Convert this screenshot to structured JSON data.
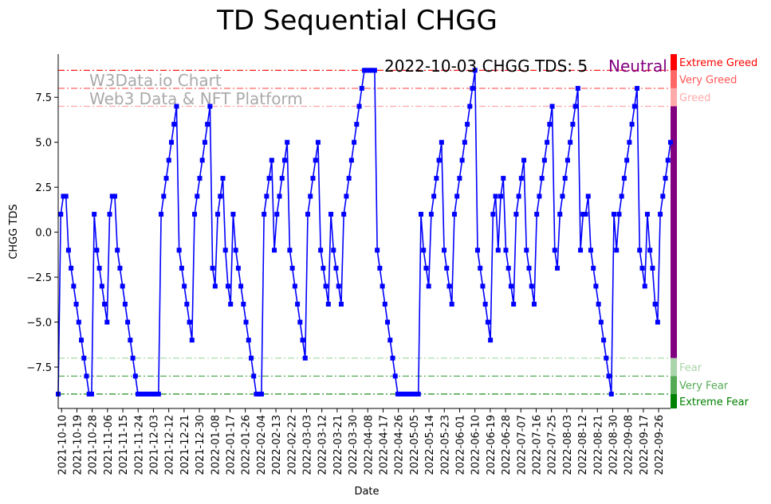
{
  "chart_data": {
    "type": "line",
    "title": "TD Sequential CHGG",
    "xlabel": "Date",
    "ylabel": "CHGG TDS",
    "ylim": [
      -9.8,
      9.9
    ],
    "yticks": [
      -7.5,
      -5.0,
      -2.5,
      0.0,
      2.5,
      5.0,
      7.5
    ],
    "ytick_labels": [
      "−7.5",
      "−5.0",
      "−2.5",
      "0.0",
      "2.5",
      "5.0",
      "7.5"
    ],
    "start_date": "2021-10-08",
    "end_date": "2022-10-03",
    "xtick_labels": [
      "2021-10-10",
      "2021-10-19",
      "2021-10-28",
      "2021-11-06",
      "2021-11-15",
      "2021-11-24",
      "2021-12-03",
      "2021-12-12",
      "2021-12-21",
      "2021-12-30",
      "2022-01-08",
      "2022-01-17",
      "2022-01-26",
      "2022-02-04",
      "2022-02-13",
      "2022-02-22",
      "2022-03-03",
      "2022-03-12",
      "2022-03-21",
      "2022-03-30",
      "2022-04-08",
      "2022-04-17",
      "2022-04-26",
      "2022-05-05",
      "2022-05-14",
      "2022-05-23",
      "2022-06-01",
      "2022-06-10",
      "2022-06-19",
      "2022-06-28",
      "2022-07-07",
      "2022-07-16",
      "2022-07-25",
      "2022-08-03",
      "2022-08-12",
      "2022-08-21",
      "2022-08-30",
      "2022-09-08",
      "2022-09-17",
      "2022-09-26"
    ],
    "series": [
      {
        "name": "CHGG TDS",
        "color": "#0000ff",
        "values": [
          -9,
          1,
          2,
          2,
          -1,
          -2,
          -3,
          -4,
          -5,
          -6,
          -7,
          -8,
          -9,
          -9,
          1,
          -1,
          -2,
          -3,
          -4,
          -5,
          1,
          2,
          2,
          -1,
          -2,
          -3,
          -4,
          -5,
          -6,
          -7,
          -8,
          -9,
          -9,
          -9,
          -9,
          -9,
          -9,
          -9,
          -9,
          -9,
          1,
          2,
          3,
          4,
          5,
          6,
          7,
          -1,
          -2,
          -3,
          -4,
          -5,
          -6,
          1,
          2,
          3,
          4,
          5,
          6,
          7,
          -2,
          -3,
          1,
          2,
          3,
          -1,
          -3,
          -4,
          1,
          -1,
          -2,
          -3,
          -4,
          -5,
          -6,
          -7,
          -8,
          -9,
          -9,
          -9,
          1,
          2,
          3,
          4,
          -1,
          1,
          2,
          3,
          4,
          5,
          -1,
          -2,
          -3,
          -4,
          -5,
          -6,
          -7,
          1,
          2,
          3,
          4,
          5,
          -1,
          -2,
          -3,
          -4,
          1,
          -1,
          -2,
          -3,
          -4,
          1,
          2,
          3,
          4,
          5,
          6,
          7,
          8,
          9,
          9,
          9,
          9,
          9,
          -1,
          -2,
          -3,
          -4,
          -5,
          -6,
          -7,
          -8,
          -9,
          -9,
          -9,
          -9,
          -9,
          -9,
          -9,
          -9,
          -9,
          1,
          -1,
          -2,
          -3,
          1,
          2,
          3,
          4,
          5,
          -1,
          -2,
          -3,
          -4,
          1,
          2,
          3,
          4,
          5,
          6,
          7,
          8,
          9,
          -1,
          -2,
          -3,
          -4,
          -5,
          -6,
          1,
          2,
          -1,
          2,
          3,
          -1,
          -2,
          -3,
          -4,
          1,
          2,
          3,
          4,
          -1,
          -2,
          -3,
          -4,
          1,
          2,
          3,
          4,
          5,
          6,
          7,
          -1,
          -2,
          1,
          2,
          3,
          4,
          5,
          6,
          7,
          8,
          -1,
          1,
          1,
          2,
          -1,
          -2,
          -3,
          -4,
          -5,
          -6,
          -7,
          -8,
          -9,
          1,
          -1,
          1,
          2,
          3,
          4,
          5,
          6,
          7,
          8,
          -1,
          -2,
          -3,
          1,
          -1,
          -2,
          -4,
          -5,
          1,
          2,
          3,
          4,
          5
        ]
      }
    ],
    "reference_lines": [
      {
        "value": 9,
        "color": "#ff0000",
        "style": "dash-dot"
      },
      {
        "value": 8,
        "color": "#ff5555",
        "style": "dash-dot"
      },
      {
        "value": 7,
        "color": "#ffaaaa",
        "style": "dash-dot"
      },
      {
        "value": -7,
        "color": "#aaddaa",
        "style": "dash-dot"
      },
      {
        "value": -8,
        "color": "#55aa55",
        "style": "dash-dot"
      },
      {
        "value": -9,
        "color": "#008000",
        "style": "dash-dot"
      }
    ],
    "zones": [
      {
        "label": "Extreme Greed",
        "from": 9,
        "to": 9.9,
        "bar_color": "#ff0000",
        "text_color": "#ff0000"
      },
      {
        "label": "Very Greed",
        "from": 8,
        "to": 9,
        "bar_color": "#ff6666",
        "text_color": "#ff5555"
      },
      {
        "label": "Greed",
        "from": 7,
        "to": 8,
        "bar_color": "#ffaaaa",
        "text_color": "#ffaaaa"
      },
      {
        "label": "",
        "from": -7,
        "to": 7,
        "bar_color": "#800080",
        "text_color": "#800080"
      },
      {
        "label": "Fear",
        "from": -8,
        "to": -7,
        "bar_color": "#aad4aa",
        "text_color": "#aad4aa"
      },
      {
        "label": "Very Fear",
        "from": -9,
        "to": -8,
        "bar_color": "#55aa55",
        "text_color": "#55aa55"
      },
      {
        "label": "Extreme Fear",
        "from": -9.8,
        "to": -9,
        "bar_color": "#008000",
        "text_color": "#008000"
      }
    ],
    "status_text": "2022-10-03 CHGG TDS: 5",
    "status_label": "Neutral",
    "status_color": "#800080",
    "watermark_lines": [
      "W3Data.io Chart",
      "Web3 Data & NFT Platform"
    ]
  }
}
